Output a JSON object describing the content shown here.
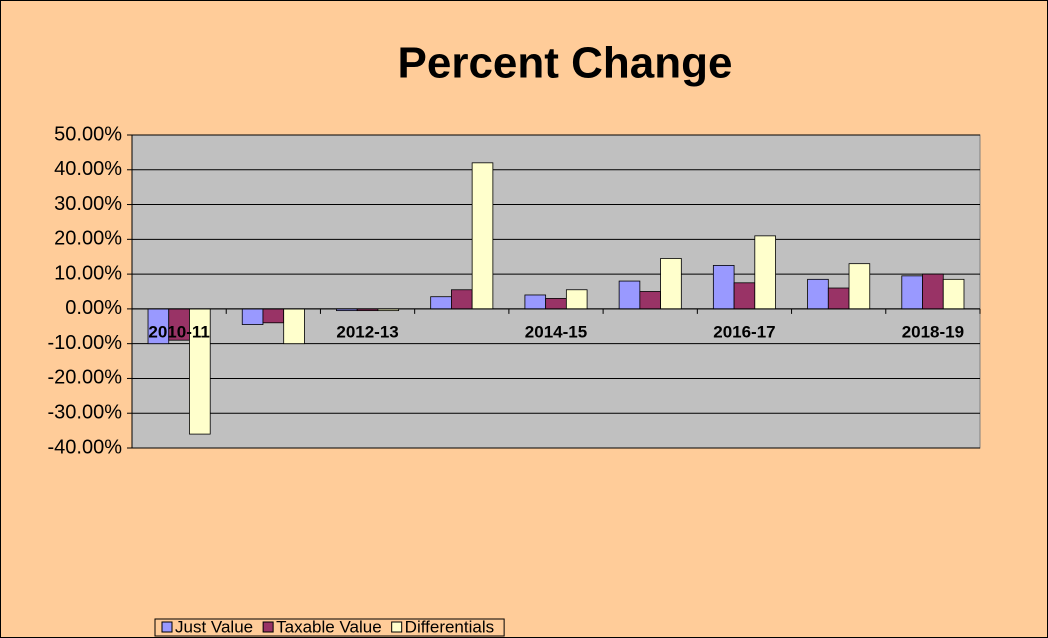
{
  "chart_data": {
    "type": "bar",
    "title": "Percent Change",
    "categories": [
      "2010-11",
      null,
      "2012-13",
      null,
      "2014-15",
      null,
      "2016-17",
      null,
      "2018-19"
    ],
    "series": [
      {
        "name": "Just Value",
        "color": "#9999ff",
        "values": [
          -10,
          -4.5,
          -0.5,
          3.5,
          4,
          8,
          12.5,
          8.5,
          9.5
        ]
      },
      {
        "name": "Taxable Value",
        "color": "#993366",
        "values": [
          -9,
          -4,
          -0.5,
          5.5,
          3,
          5,
          7.5,
          6,
          10
        ]
      },
      {
        "name": "Differentials",
        "color": "#ffffcc",
        "values": [
          -36,
          -10,
          -0.5,
          42,
          5.5,
          14.5,
          21,
          13,
          8.5
        ]
      }
    ],
    "ylim": [
      -40,
      50
    ],
    "yticks": [
      {
        "value": 50,
        "label": "50.00%"
      },
      {
        "value": 40,
        "label": "40.00%"
      },
      {
        "value": 30,
        "label": "30.00%"
      },
      {
        "value": 20,
        "label": "20.00%"
      },
      {
        "value": 10,
        "label": "10.00%"
      },
      {
        "value": 0,
        "label": "0.00%"
      },
      {
        "value": -10,
        "label": "-10.00%"
      },
      {
        "value": -20,
        "label": "-20.00%"
      },
      {
        "value": -30,
        "label": "-30.00%"
      },
      {
        "value": -40,
        "label": "-40.00%"
      }
    ],
    "grid": true,
    "legend": "bottom-left"
  }
}
